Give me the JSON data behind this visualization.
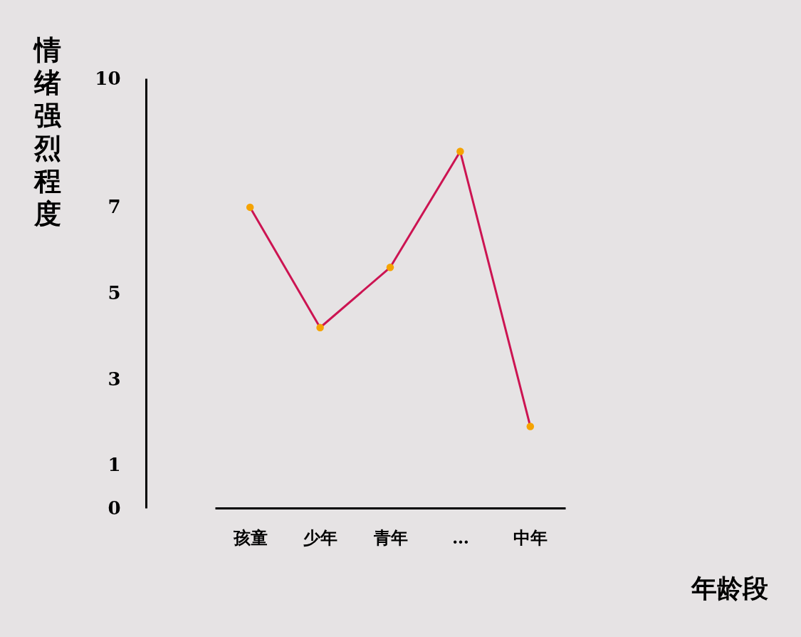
{
  "chart_data": {
    "type": "line",
    "ylabel": "情绪强烈程度",
    "xlabel": "年龄段",
    "categories": [
      "孩童",
      "少年",
      "青年",
      "…",
      "中年"
    ],
    "series": [
      {
        "color": "#cc1452",
        "colors": [
          "#f5a300",
          "#f5a300",
          "#f5a300",
          "#f5a300",
          "#f5a300"
        ],
        "values": [
          7,
          4.2,
          5.6,
          8.3,
          1.9
        ]
      }
    ],
    "marker": "circle",
    "ylim": [
      0,
      10
    ],
    "yticks": [
      0,
      1,
      3,
      5,
      7,
      10
    ],
    "grid": false
  }
}
